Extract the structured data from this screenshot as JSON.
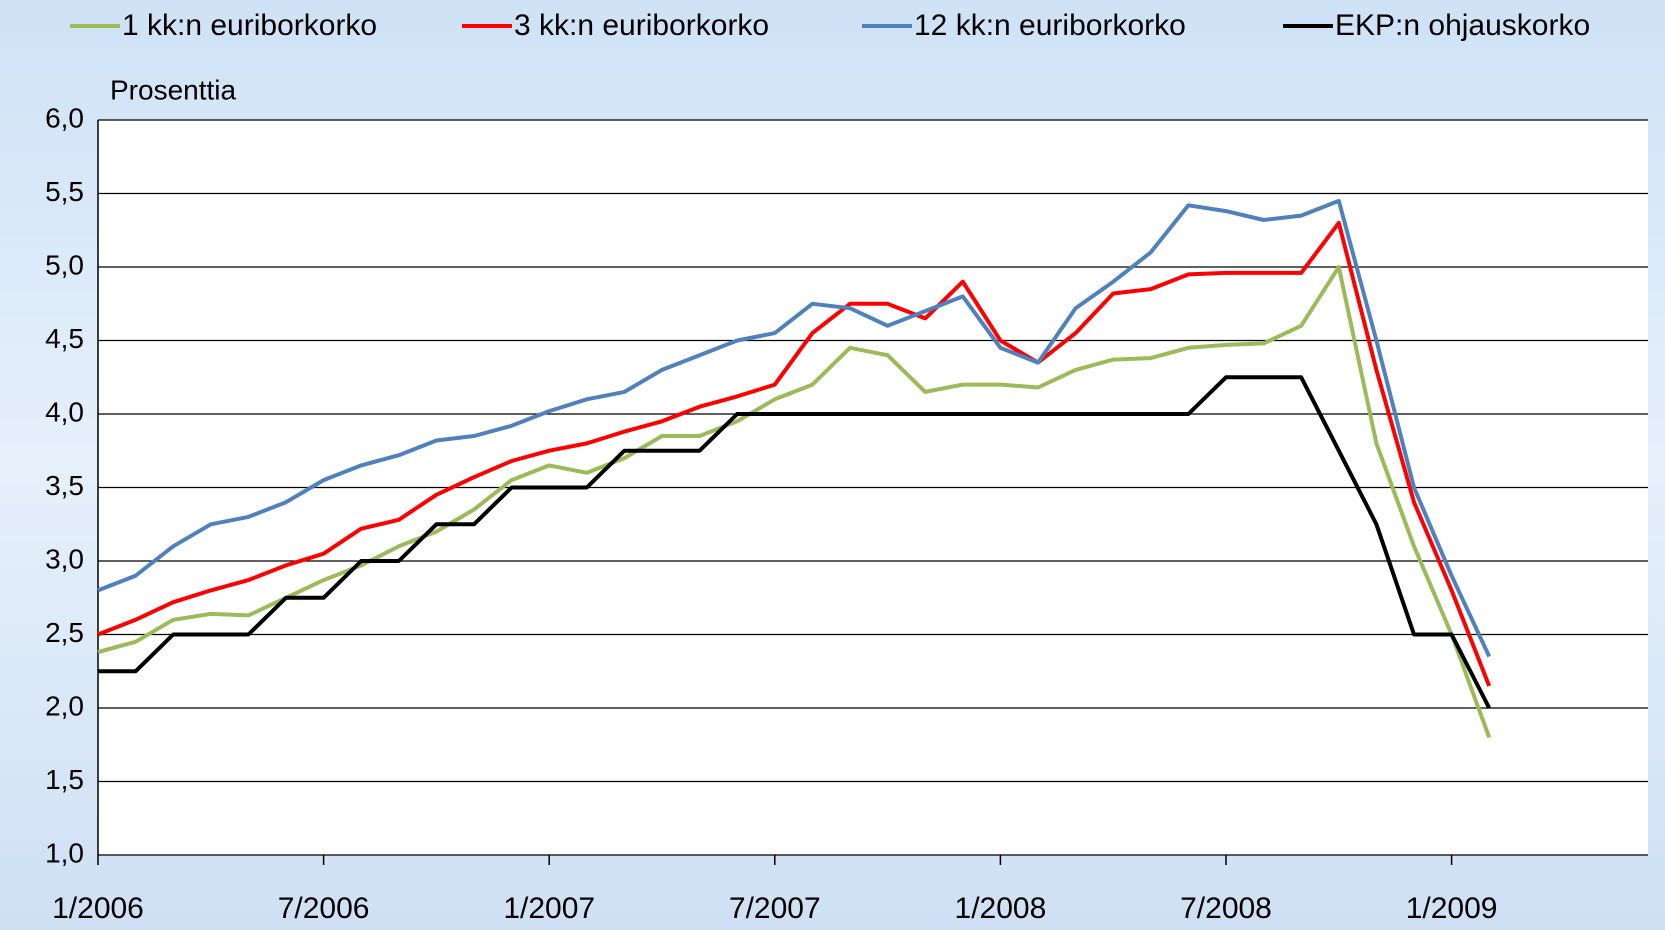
{
  "chart_data": {
    "type": "line",
    "y_label": "Prosenttia",
    "categories": [
      "1/2006",
      null,
      null,
      null,
      null,
      null,
      "7/2006",
      null,
      null,
      null,
      null,
      null,
      "1/2007",
      null,
      null,
      null,
      null,
      null,
      "7/2007",
      null,
      null,
      null,
      null,
      null,
      "1/2008",
      null,
      null,
      null,
      null,
      null,
      "7/2008",
      null,
      null,
      null,
      null,
      null,
      "1/2009",
      null
    ],
    "series": [
      {
        "name": "1 kk:n euriborkorko",
        "color": "#9bbb59",
        "values": [
          2.38,
          2.45,
          2.6,
          2.64,
          2.63,
          2.75,
          2.87,
          2.97,
          3.1,
          3.2,
          3.35,
          3.55,
          3.65,
          3.6,
          3.7,
          3.85,
          3.85,
          3.95,
          4.1,
          4.2,
          4.45,
          4.4,
          4.15,
          4.2,
          4.2,
          4.18,
          4.3,
          4.37,
          4.38,
          4.45,
          4.47,
          4.48,
          4.6,
          5.0,
          3.8,
          3.1,
          2.5,
          1.8
        ]
      },
      {
        "name": "3 kk:n euriborkorko",
        "color": "#ff0000",
        "values": [
          2.5,
          2.6,
          2.72,
          2.8,
          2.87,
          2.97,
          3.05,
          3.22,
          3.28,
          3.45,
          3.57,
          3.68,
          3.75,
          3.8,
          3.88,
          3.95,
          4.05,
          4.12,
          4.2,
          4.55,
          4.75,
          4.75,
          4.65,
          4.9,
          4.5,
          4.35,
          4.55,
          4.82,
          4.85,
          4.95,
          4.96,
          4.96,
          4.96,
          5.3,
          4.3,
          3.4,
          2.8,
          2.15
        ]
      },
      {
        "name": "12 kk:n euriborkorko",
        "color": "#4f81bd",
        "values": [
          2.8,
          2.9,
          3.1,
          3.25,
          3.3,
          3.4,
          3.55,
          3.65,
          3.72,
          3.82,
          3.85,
          3.92,
          4.02,
          4.1,
          4.15,
          4.3,
          4.4,
          4.5,
          4.55,
          4.75,
          4.72,
          4.6,
          4.7,
          4.8,
          4.45,
          4.35,
          4.72,
          4.9,
          5.1,
          5.42,
          5.38,
          5.32,
          5.35,
          5.45,
          4.5,
          3.5,
          2.9,
          2.35
        ]
      },
      {
        "name": "EKP:n ohjauskorko",
        "color": "#000000",
        "values": [
          2.25,
          2.25,
          2.5,
          2.5,
          2.5,
          2.75,
          2.75,
          3.0,
          3.0,
          3.25,
          3.25,
          3.5,
          3.5,
          3.5,
          3.75,
          3.75,
          3.75,
          4.0,
          4.0,
          4.0,
          4.0,
          4.0,
          4.0,
          4.0,
          4.0,
          4.0,
          4.0,
          4.0,
          4.0,
          4.0,
          4.25,
          4.25,
          4.25,
          3.75,
          3.25,
          2.5,
          2.5,
          2.0
        ]
      }
    ],
    "ylim": [
      1,
      6
    ],
    "yticks": [
      {
        "value": 1,
        "label": "1,0"
      },
      {
        "value": 1.5,
        "label": "1,5"
      },
      {
        "value": 2,
        "label": "2,0"
      },
      {
        "value": 2.5,
        "label": "2,5"
      },
      {
        "value": 3,
        "label": "3,0"
      },
      {
        "value": 3.5,
        "label": "3,5"
      },
      {
        "value": 4,
        "label": "4,0"
      },
      {
        "value": 4.5,
        "label": "4,5"
      },
      {
        "value": 5,
        "label": "5,0"
      },
      {
        "value": 5.5,
        "label": "5,5"
      },
      {
        "value": 6,
        "label": "6,0"
      }
    ],
    "grid": true
  }
}
